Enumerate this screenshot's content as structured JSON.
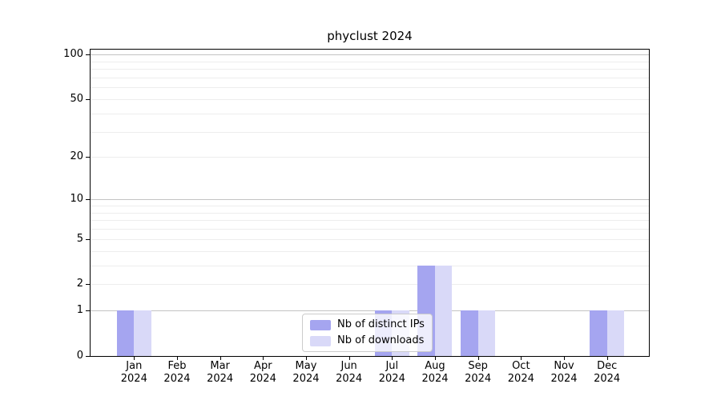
{
  "title": "phyclust 2024",
  "chart_data": {
    "type": "bar",
    "title": "phyclust 2024",
    "categories": [
      "Jan 2024",
      "Feb 2024",
      "Mar 2024",
      "Apr 2024",
      "May 2024",
      "Jun 2024",
      "Jul 2024",
      "Aug 2024",
      "Sep 2024",
      "Oct 2024",
      "Nov 2024",
      "Dec 2024"
    ],
    "x_tick_month_labels": [
      "Jan",
      "Feb",
      "Mar",
      "Apr",
      "May",
      "Jun",
      "Jul",
      "Aug",
      "Sep",
      "Oct",
      "Nov",
      "Dec"
    ],
    "x_tick_year_label": "2024",
    "series": [
      {
        "name": "Nb of distinct IPs",
        "color": "#a5a5f0",
        "values": [
          1,
          0,
          0,
          0,
          0,
          0,
          1,
          3,
          1,
          0,
          0,
          1
        ]
      },
      {
        "name": "Nb of downloads",
        "color": "#d9d9f8",
        "values": [
          1,
          0,
          0,
          0,
          0,
          0,
          1,
          3,
          1,
          0,
          0,
          1
        ]
      }
    ],
    "yscale": "log1p",
    "ylim": [
      0,
      108
    ],
    "y_ticks": [
      {
        "value": 100,
        "label": "100"
      },
      {
        "value": 50,
        "label": "50"
      },
      {
        "value": 20,
        "label": "20"
      },
      {
        "value": 10,
        "label": "10"
      },
      {
        "value": 5,
        "label": "5"
      },
      {
        "value": 2,
        "label": "2"
      },
      {
        "value": 1,
        "label": "1"
      },
      {
        "value": 0,
        "label": "0"
      }
    ],
    "y_major_gridlines": [
      1,
      10,
      100
    ],
    "y_minor_gridlines": [
      2,
      3,
      4,
      5,
      6,
      7,
      8,
      9,
      20,
      30,
      40,
      50,
      60,
      70,
      80,
      90
    ],
    "grid": true,
    "legend": {
      "position": "lower center",
      "entries": [
        "Nb of distinct IPs",
        "Nb of downloads"
      ]
    }
  },
  "colors": {
    "bar_distinct_ips": "#a5a5f0",
    "bar_downloads": "#d9d9f8",
    "grid_major": "#c3c3c3",
    "grid_minor": "#ededed",
    "axis": "#000000",
    "text": "#000000",
    "legend_border": "#cccccc",
    "background": "#ffffff"
  }
}
